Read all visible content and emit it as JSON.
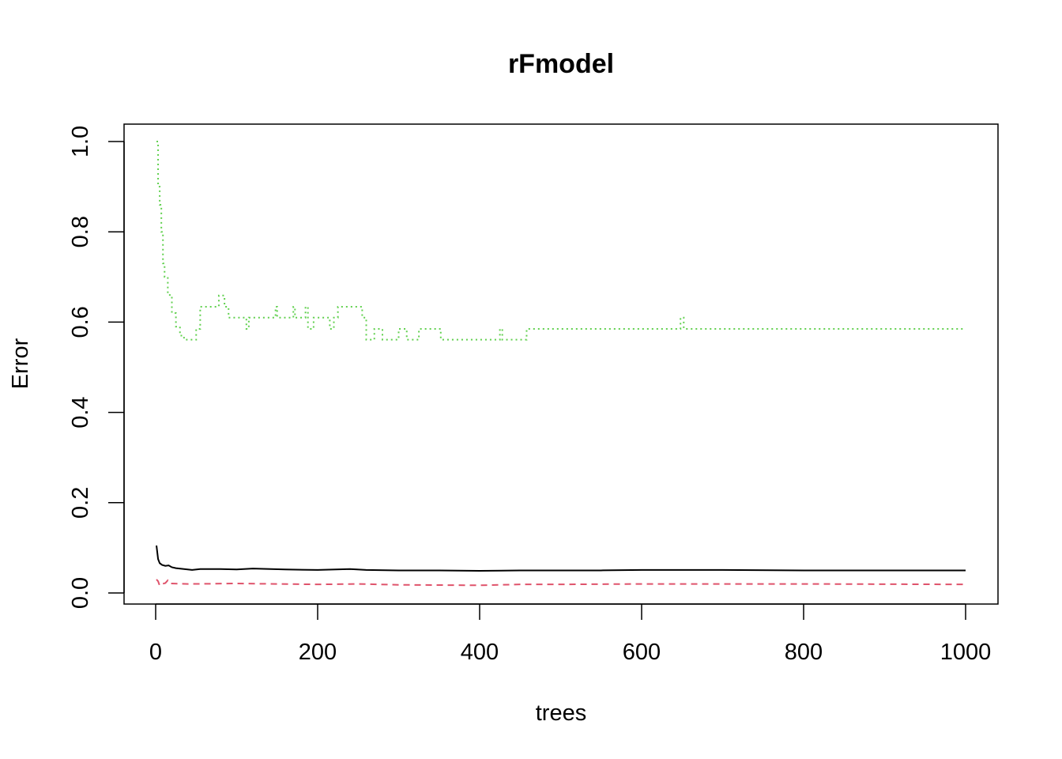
{
  "chart_data": {
    "type": "line",
    "title": "rFmodel",
    "xlabel": "trees",
    "ylabel": "Error",
    "xlim": [
      0,
      1000
    ],
    "ylim": [
      0,
      1
    ],
    "x_ticks": [
      "0",
      "200",
      "400",
      "600",
      "800",
      "1000"
    ],
    "x_tick_values": [
      0,
      200,
      400,
      600,
      800,
      1000
    ],
    "y_ticks": [
      "0.0",
      "0.2",
      "0.4",
      "0.6",
      "0.8",
      "1.0"
    ],
    "y_tick_values": [
      0,
      0.2,
      0.4,
      0.6,
      0.8,
      1.0
    ],
    "grid": false,
    "series": [
      {
        "color": "#000000",
        "style": "solid",
        "points": [
          [
            1,
            0.105
          ],
          [
            2,
            0.09
          ],
          [
            3,
            0.075
          ],
          [
            5,
            0.066
          ],
          [
            8,
            0.062
          ],
          [
            12,
            0.06
          ],
          [
            16,
            0.061
          ],
          [
            20,
            0.057
          ],
          [
            25,
            0.055
          ],
          [
            35,
            0.053
          ],
          [
            45,
            0.051
          ],
          [
            55,
            0.053
          ],
          [
            80,
            0.053
          ],
          [
            100,
            0.052
          ],
          [
            120,
            0.054
          ],
          [
            160,
            0.052
          ],
          [
            200,
            0.051
          ],
          [
            240,
            0.053
          ],
          [
            260,
            0.051
          ],
          [
            300,
            0.05
          ],
          [
            350,
            0.05
          ],
          [
            400,
            0.049
          ],
          [
            450,
            0.05
          ],
          [
            500,
            0.05
          ],
          [
            550,
            0.05
          ],
          [
            600,
            0.051
          ],
          [
            700,
            0.051
          ],
          [
            800,
            0.05
          ],
          [
            900,
            0.05
          ],
          [
            1000,
            0.05
          ]
        ]
      },
      {
        "color": "#DF536B",
        "style": "dashed",
        "points": [
          [
            1,
            0.03
          ],
          [
            3,
            0.026
          ],
          [
            5,
            0.016
          ],
          [
            8,
            0.02
          ],
          [
            12,
            0.022
          ],
          [
            15,
            0.028
          ],
          [
            18,
            0.021
          ],
          [
            40,
            0.02
          ],
          [
            100,
            0.021
          ],
          [
            200,
            0.019
          ],
          [
            250,
            0.02
          ],
          [
            300,
            0.018
          ],
          [
            400,
            0.017
          ],
          [
            450,
            0.019
          ],
          [
            500,
            0.019
          ],
          [
            600,
            0.02
          ],
          [
            800,
            0.02
          ],
          [
            1000,
            0.019
          ]
        ]
      },
      {
        "color": "#61D04F",
        "style": "dotted",
        "points": [
          [
            1,
            1.0
          ],
          [
            3,
            0.9
          ],
          [
            5,
            0.86
          ],
          [
            7,
            0.8
          ],
          [
            9,
            0.73
          ],
          [
            11,
            0.7
          ],
          [
            15,
            0.66
          ],
          [
            20,
            0.62
          ],
          [
            25,
            0.59
          ],
          [
            30,
            0.57
          ],
          [
            35,
            0.561
          ],
          [
            48,
            0.561
          ],
          [
            50,
            0.585
          ],
          [
            55,
            0.634
          ],
          [
            75,
            0.634
          ],
          [
            78,
            0.659
          ],
          [
            85,
            0.634
          ],
          [
            90,
            0.61
          ],
          [
            110,
            0.61
          ],
          [
            112,
            0.585
          ],
          [
            115,
            0.61
          ],
          [
            145,
            0.61
          ],
          [
            148,
            0.634
          ],
          [
            150,
            0.61
          ],
          [
            170,
            0.634
          ],
          [
            172,
            0.61
          ],
          [
            185,
            0.634
          ],
          [
            188,
            0.585
          ],
          [
            195,
            0.61
          ],
          [
            215,
            0.585
          ],
          [
            220,
            0.61
          ],
          [
            225,
            0.634
          ],
          [
            250,
            0.634
          ],
          [
            255,
            0.61
          ],
          [
            260,
            0.561
          ],
          [
            270,
            0.585
          ],
          [
            280,
            0.561
          ],
          [
            300,
            0.585
          ],
          [
            310,
            0.561
          ],
          [
            320,
            0.561
          ],
          [
            325,
            0.585
          ],
          [
            348,
            0.585
          ],
          [
            352,
            0.561
          ],
          [
            420,
            0.561
          ],
          [
            425,
            0.585
          ],
          [
            428,
            0.561
          ],
          [
            455,
            0.561
          ],
          [
            458,
            0.585
          ],
          [
            645,
            0.585
          ],
          [
            648,
            0.61
          ],
          [
            652,
            0.585
          ],
          [
            1000,
            0.585
          ]
        ]
      }
    ]
  }
}
